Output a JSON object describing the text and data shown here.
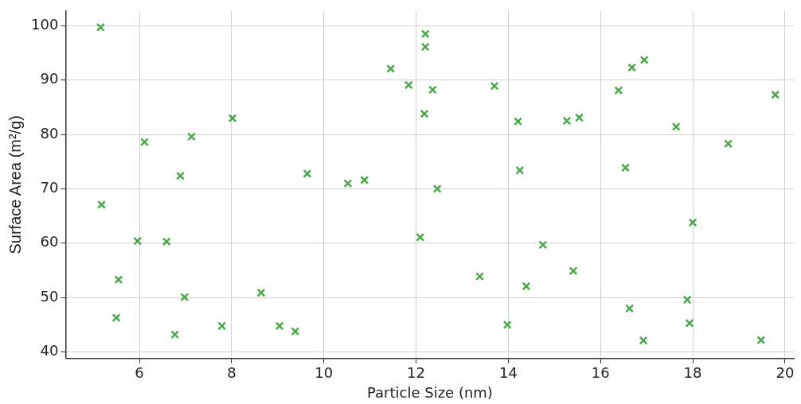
{
  "chart_data": {
    "type": "scatter",
    "xlabel": "Particle Size (nm)",
    "ylabel": "Surface Area (m²/g)",
    "xlim": [
      4.4,
      20.2
    ],
    "ylim": [
      38.8,
      102.7
    ],
    "xticks": [
      6,
      8,
      10,
      12,
      14,
      16,
      18,
      20
    ],
    "yticks": [
      40,
      50,
      60,
      70,
      80,
      90,
      100
    ],
    "grid": true,
    "marker": "cross",
    "series": [
      {
        "color": "#4ca64c",
        "x": [
          5.16,
          5.18,
          5.55,
          5.5,
          5.96,
          6.11,
          6.59,
          6.89,
          7.13,
          6.98,
          6.77,
          7.79,
          8.02,
          8.64,
          9.04,
          9.38,
          9.64,
          10.52,
          10.88,
          11.45,
          11.84,
          12.2,
          12.2,
          12.18,
          12.36,
          12.09,
          12.46,
          13.38,
          13.7,
          14.21,
          14.25,
          13.98,
          14.39,
          14.75,
          15.27,
          15.54,
          15.41,
          16.39,
          16.54,
          16.68,
          16.95,
          16.63,
          16.93,
          17.64,
          18.0,
          17.88,
          17.93,
          18.77,
          19.79,
          19.48
        ],
        "values": [
          99.7,
          67.1,
          53.3,
          46.3,
          60.4,
          78.6,
          60.3,
          72.4,
          79.6,
          50.1,
          43.2,
          44.8,
          83.0,
          50.9,
          44.8,
          43.8,
          72.8,
          71.0,
          71.6,
          92.1,
          89.1,
          98.5,
          96.1,
          83.8,
          88.2,
          61.1,
          70.0,
          53.9,
          88.9,
          82.4,
          73.4,
          45.0,
          52.1,
          59.7,
          82.5,
          83.1,
          54.9,
          88.1,
          73.9,
          92.3,
          93.7,
          48.0,
          42.1,
          81.4,
          63.8,
          49.6,
          45.3,
          78.3,
          87.3,
          42.2
        ]
      }
    ]
  }
}
